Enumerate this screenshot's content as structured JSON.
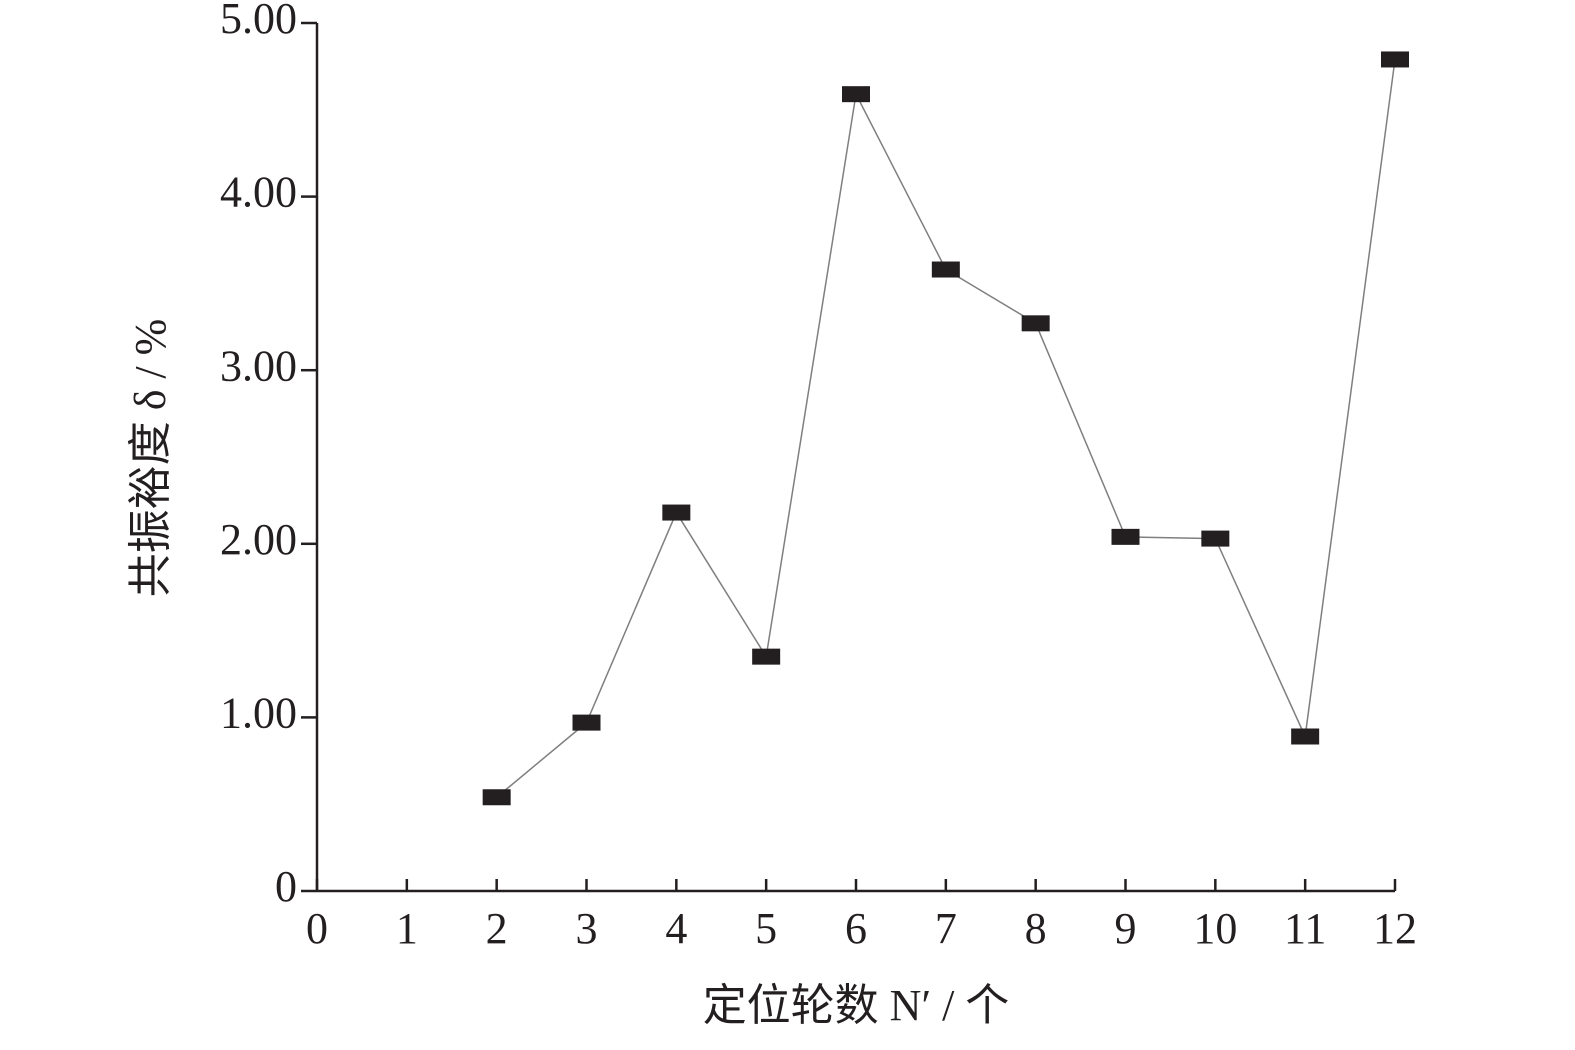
{
  "chart_data": {
    "type": "line",
    "x_label": "定位轮数 N′ / 个",
    "y_label": "共振裕度 δ / %",
    "x": [
      2,
      3,
      4,
      5,
      6,
      7,
      8,
      9,
      10,
      11,
      12
    ],
    "series": [
      {
        "color": "#231f20",
        "line_color": "#7f7f7f",
        "marker": "square",
        "values": [
          0.54,
          0.97,
          2.18,
          1.35,
          4.59,
          3.58,
          3.27,
          2.04,
          2.03,
          0.89,
          4.79
        ]
      }
    ],
    "xlim": [
      0,
      12
    ],
    "xticks": [
      0,
      1,
      2,
      3,
      4,
      5,
      6,
      7,
      8,
      9,
      10,
      11,
      12
    ],
    "ylim": [
      0,
      5
    ],
    "yticks": [
      0,
      {
        "value": 1,
        "label": "1.00"
      },
      {
        "value": 2,
        "label": "2.00"
      },
      {
        "value": 3,
        "label": "3.00"
      },
      {
        "value": 4,
        "label": "4.00"
      },
      {
        "value": 5,
        "label": "5.00"
      }
    ],
    "grid": false
  }
}
